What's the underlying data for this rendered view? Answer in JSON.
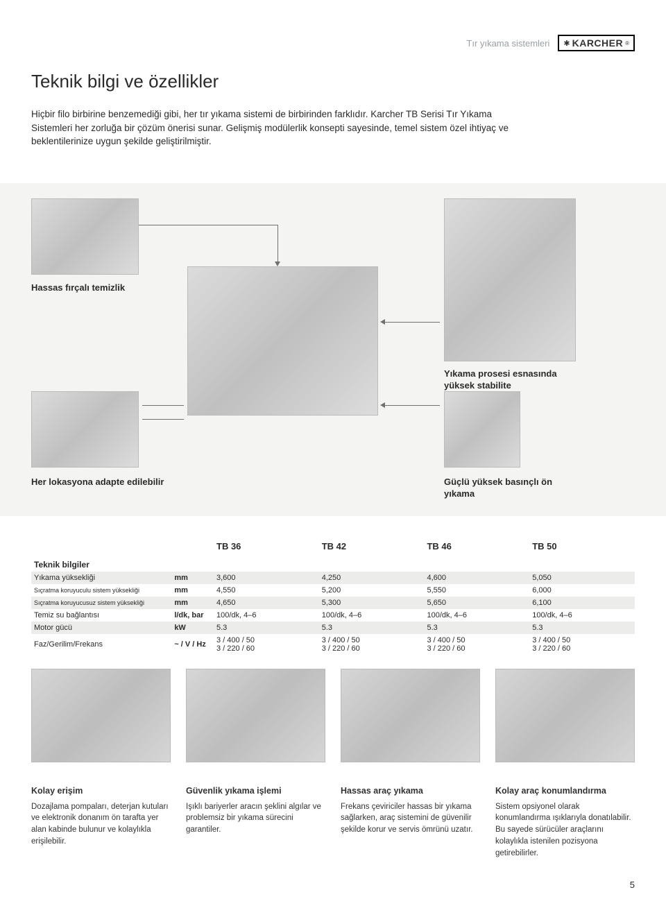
{
  "header": {
    "category": "Tır yıkama sistemleri",
    "brand": "KARCHER",
    "brand_reg": "®"
  },
  "title": "Teknik bilgi ve özellikler",
  "intro": "Hiçbir filo birbirine benzemediği gibi, her tır yıkama sistemi de birbirinden farklıdır. Karcher TB Serisi Tır Yıkama Sistemleri her zorluğa bir çözüm önerisi sunar. Gelişmiş modülerlik konsepti sayesinde, temel sistem özel ihtiyaç ve beklentilerinize uygun şekilde geliştirilmiştir.",
  "captions": {
    "brush": "Hassas fırçalı temizlik",
    "stability": "Yıkama prosesi esnasında yüksek stabilite",
    "adapt": "Her lokasyona adapte edilebilir",
    "prewash": "Güçlü yüksek basınçlı ön yıkama"
  },
  "tech_table": {
    "columns": [
      "TB 36",
      "TB 42",
      "TB 46",
      "TB 50"
    ],
    "section_title": "Teknik bilgiler",
    "rows": [
      {
        "label": "Yıkama yüksekliği",
        "unit": "mm",
        "vals": [
          "3,600",
          "4,250",
          "4,600",
          "5,050"
        ],
        "alt": true
      },
      {
        "label": "Sıçratma koruyuculu sistem yüksekliği",
        "unit": "mm",
        "vals": [
          "4,550",
          "5,200",
          "5,550",
          "6,000"
        ],
        "alt": false
      },
      {
        "label": "Sıçratma koruyucusuz sistem yüksekliği",
        "unit": "mm",
        "vals": [
          "4,650",
          "5,300",
          "5,650",
          "6,100"
        ],
        "alt": true
      },
      {
        "label": "Temiz su bağlantısı",
        "unit": "l/dk, bar",
        "vals": [
          "100/dk, 4–6",
          "100/dk, 4–6",
          "100/dk, 4–6",
          "100/dk, 4–6"
        ],
        "alt": false
      },
      {
        "label": "Motor gücü",
        "unit": "kW",
        "vals": [
          "5.3",
          "5.3",
          "5.3",
          "5.3"
        ],
        "alt": true
      },
      {
        "label": "Faz/Gerilim/Frekans",
        "unit": "~ / V / Hz",
        "vals": [
          "3 / 400 / 50\n3 / 220 / 60",
          "3 / 400 / 50\n3 / 220 / 60",
          "3 / 400 / 50\n3 / 220 / 60",
          "3 / 400 / 50\n3 / 220 / 60"
        ],
        "alt": false
      }
    ]
  },
  "blurbs": [
    {
      "title": "Kolay erişim",
      "body": "Dozajlama pompaları, deterjan kutuları ve elektronik donanım ön tarafta yer alan kabinde bulunur ve kolaylıkla erişilebilir."
    },
    {
      "title": "Güvenlik yıkama işlemi",
      "body": "Işıklı bariyerler aracın şeklini algılar ve problemsiz bir yıkama sürecini garantiler."
    },
    {
      "title": "Hassas araç yıkama",
      "body": "Frekans çeviriciler hassas bir yıkama sağlarken, araç sistemini de güvenilir şekilde korur ve servis ömrünü uzatır."
    },
    {
      "title": "Kolay araç konumlandırma",
      "body": "Sistem opsiyonel olarak konumlandırma ışıklarıyla donatılabilir. Bu sayede sürücüler araçlarını kolaylıkla istenilen pozisyona getirebilirler."
    }
  ],
  "page_number": "5",
  "colors": {
    "band_bg": "#f4f4f2",
    "row_alt": "#ececea",
    "text": "#2a2a2a",
    "muted": "#9aa0a4",
    "arrow": "#707070"
  }
}
